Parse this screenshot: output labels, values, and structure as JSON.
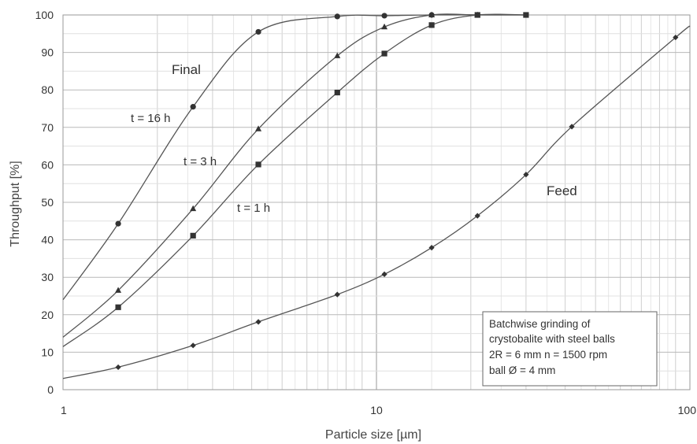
{
  "chart_data": {
    "type": "line",
    "x_scale": "log",
    "xlabel": "Particle size [µm]",
    "ylabel": "Throughput [%]",
    "xlim": [
      1,
      100
    ],
    "ylim": [
      0,
      100
    ],
    "x_ticks": [
      1,
      10,
      100
    ],
    "x_tick_labels": [
      "1",
      "10",
      "100"
    ],
    "y_ticks": [
      0,
      10,
      20,
      30,
      40,
      50,
      60,
      70,
      80,
      90,
      100
    ],
    "y_tick_labels": [
      "0",
      "10",
      "20",
      "30",
      "40",
      "50",
      "60",
      "70",
      "80",
      "90",
      "100"
    ],
    "grid": true,
    "series": [
      {
        "name": "t = 16 h",
        "marker": "circle",
        "curve_points": [
          [
            1.0,
            24
          ],
          [
            1.5,
            44.3
          ],
          [
            2.6,
            75.5
          ],
          [
            4.2,
            95.5
          ],
          [
            7.5,
            99.6
          ],
          [
            10.6,
            99.8
          ],
          [
            15,
            100
          ],
          [
            30,
            100
          ]
        ],
        "markers": [
          [
            1.5,
            44.3
          ],
          [
            2.6,
            75.5
          ],
          [
            4.2,
            95.5
          ],
          [
            7.5,
            99.6
          ],
          [
            10.6,
            99.8
          ],
          [
            15,
            100
          ]
        ]
      },
      {
        "name": "t = 3 h",
        "marker": "triangle",
        "curve_points": [
          [
            1.0,
            14
          ],
          [
            1.5,
            26.5
          ],
          [
            2.6,
            48.3
          ],
          [
            4.2,
            69.6
          ],
          [
            7.5,
            89.1
          ],
          [
            10.6,
            96.8
          ],
          [
            15,
            100
          ],
          [
            21,
            100
          ],
          [
            30,
            100
          ]
        ],
        "markers": [
          [
            1.5,
            26.5
          ],
          [
            2.6,
            48.3
          ],
          [
            4.2,
            69.6
          ],
          [
            7.5,
            89.1
          ],
          [
            10.6,
            96.8
          ],
          [
            15,
            100
          ],
          [
            21,
            100
          ]
        ]
      },
      {
        "name": "t = 1 h",
        "marker": "square",
        "curve_points": [
          [
            1.0,
            11.5
          ],
          [
            1.5,
            22
          ],
          [
            2.6,
            41.1
          ],
          [
            4.2,
            60.1
          ],
          [
            7.5,
            79.3
          ],
          [
            10.6,
            89.7
          ],
          [
            15,
            97.3
          ],
          [
            21,
            100
          ],
          [
            30,
            100
          ]
        ],
        "markers": [
          [
            1.5,
            22
          ],
          [
            2.6,
            41.1
          ],
          [
            4.2,
            60.1
          ],
          [
            7.5,
            79.3
          ],
          [
            10.6,
            89.7
          ],
          [
            15,
            97.3
          ],
          [
            21,
            100
          ],
          [
            30,
            100
          ]
        ]
      },
      {
        "name": "Feed",
        "marker": "diamond",
        "curve_points": [
          [
            1.0,
            3
          ],
          [
            1.5,
            6
          ],
          [
            2.6,
            11.8
          ],
          [
            4.2,
            18.1
          ],
          [
            7.5,
            25.4
          ],
          [
            10.6,
            30.8
          ],
          [
            15,
            37.9
          ],
          [
            21,
            46.4
          ],
          [
            30,
            57.4
          ],
          [
            42,
            70.2
          ],
          [
            90,
            94
          ],
          [
            100,
            97
          ]
        ],
        "markers": [
          [
            1.5,
            6
          ],
          [
            2.6,
            11.8
          ],
          [
            4.2,
            18.1
          ],
          [
            7.5,
            25.4
          ],
          [
            10.6,
            30.8
          ],
          [
            15,
            37.9
          ],
          [
            21,
            46.4
          ],
          [
            30,
            57.4
          ],
          [
            42,
            70.2
          ],
          [
            90,
            94
          ]
        ]
      }
    ],
    "annotations": {
      "final_label": "Final",
      "t16_label": "t = 16 h",
      "t3_label": "t = 3 h",
      "t1_label": "t = 1 h",
      "feed_label": "Feed"
    },
    "note_box": {
      "lines": [
        "Batchwise grinding of",
        "crystobalite with steel balls",
        "2R = 6 mm   n = 1500 rpm",
        "ball Ø = 4 mm"
      ]
    }
  }
}
